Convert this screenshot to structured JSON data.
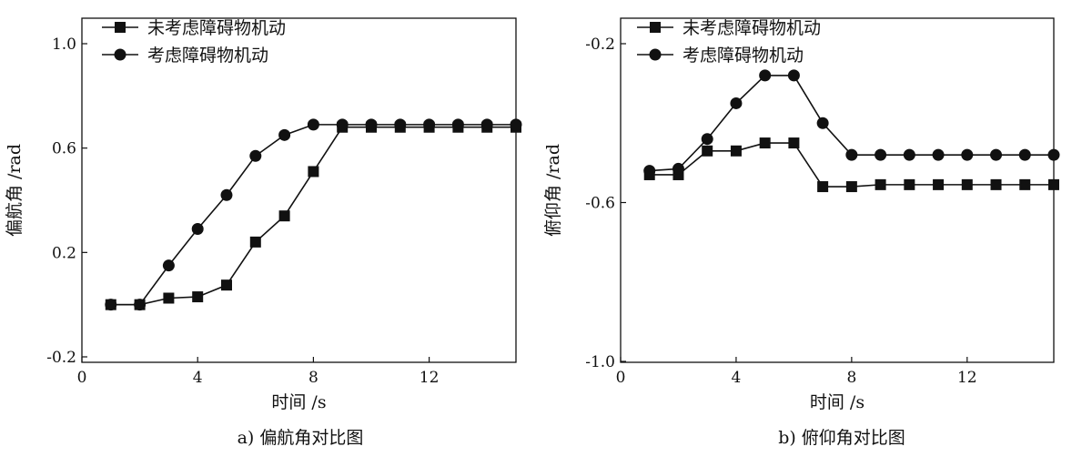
{
  "chart_data": [
    {
      "type": "line",
      "caption": "a)   偏航角对比图",
      "xlabel": "时间 /s",
      "ylabel": "偏航角 /rad",
      "xlim": [
        0,
        15
      ],
      "ylim": [
        -0.2,
        1.0
      ],
      "xticks": [
        "0",
        "4",
        "8",
        "12"
      ],
      "xtick_values": [
        0,
        4,
        8,
        12
      ],
      "yticks": [
        "-0.2",
        "0.2",
        "0.6",
        "1.0"
      ],
      "ytick_values": [
        -0.2,
        0.2,
        0.6,
        1.0
      ],
      "legend_position": "top-left",
      "grid": false,
      "x": [
        1,
        2,
        3,
        4,
        5,
        6,
        7,
        8,
        9,
        10,
        11,
        12,
        13,
        14,
        15
      ],
      "series": [
        {
          "name": "未考虑障碍物机动",
          "marker": "square",
          "values": [
            0.0,
            0.0,
            0.025,
            0.03,
            0.075,
            0.24,
            0.34,
            0.51,
            0.68,
            0.68,
            0.68,
            0.68,
            0.68,
            0.68,
            0.68
          ]
        },
        {
          "name": "考虑障碍物机动",
          "marker": "circle",
          "values": [
            0.0,
            0.0,
            0.15,
            0.29,
            0.42,
            0.57,
            0.65,
            0.69,
            0.69,
            0.69,
            0.69,
            0.69,
            0.69,
            0.69,
            0.69
          ]
        }
      ]
    },
    {
      "type": "line",
      "caption": "b)   俯仰角对比图",
      "xlabel": "时间 /s",
      "ylabel": "俯仰角 /rad",
      "xlim": [
        0,
        15
      ],
      "ylim": [
        -1.0,
        0.0
      ],
      "xticks": [
        "0",
        "4",
        "8",
        "12"
      ],
      "xtick_values": [
        0,
        4,
        8,
        12
      ],
      "yticks": [
        "-1.0",
        "-0.6",
        "-0.2"
      ],
      "ytick_values": [
        -1.0,
        -0.6,
        -0.2
      ],
      "legend_position": "top-left",
      "grid": false,
      "x": [
        1,
        2,
        3,
        4,
        5,
        6,
        7,
        8,
        9,
        10,
        11,
        12,
        13,
        14,
        15
      ],
      "series": [
        {
          "name": "未考虑障碍物机动",
          "marker": "square",
          "values": [
            -0.53,
            -0.53,
            -0.47,
            -0.47,
            -0.45,
            -0.45,
            -0.56,
            -0.56,
            -0.555,
            -0.555,
            -0.555,
            -0.555,
            -0.555,
            -0.555,
            -0.555
          ]
        },
        {
          "name": "考虑障碍物机动",
          "marker": "circle",
          "values": [
            -0.52,
            -0.515,
            -0.44,
            -0.35,
            -0.28,
            -0.28,
            -0.4,
            -0.48,
            -0.48,
            -0.48,
            -0.48,
            -0.48,
            -0.48,
            -0.48,
            -0.48
          ]
        }
      ]
    }
  ]
}
